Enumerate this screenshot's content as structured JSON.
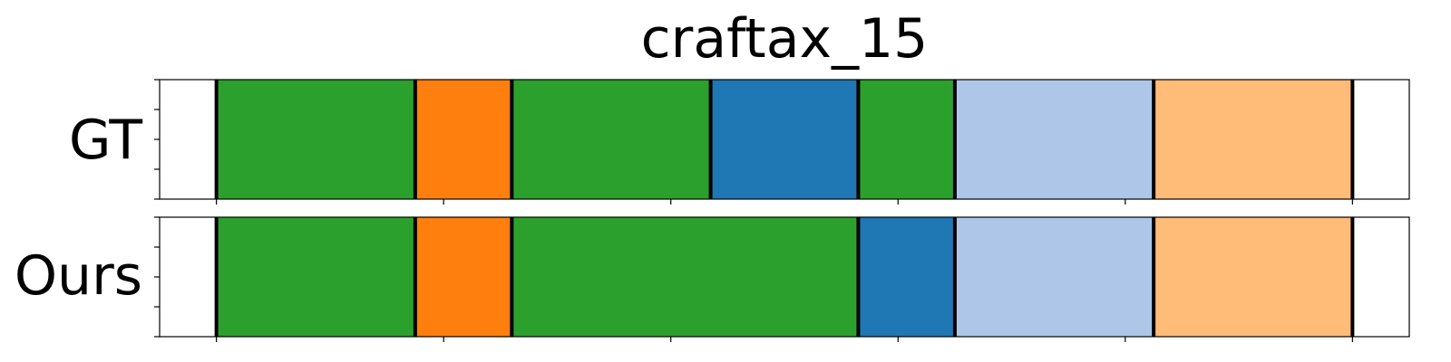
{
  "chart_data": {
    "type": "segmentation",
    "title": "craftax_15",
    "x_range": [
      -0.5,
      10.5
    ],
    "x_ticks": [
      0,
      2,
      4,
      6,
      8,
      10
    ],
    "grid": false,
    "legend": "none",
    "rows": [
      {
        "label": "GT",
        "segments": [
          {
            "start": 0.0,
            "end": 1.75,
            "color": "#2ca02c"
          },
          {
            "start": 1.75,
            "end": 2.6,
            "color": "#ff7f0e"
          },
          {
            "start": 2.6,
            "end": 4.35,
            "color": "#2ca02c"
          },
          {
            "start": 4.35,
            "end": 5.65,
            "color": "#1f77b4"
          },
          {
            "start": 5.65,
            "end": 6.5,
            "color": "#2ca02c"
          },
          {
            "start": 6.5,
            "end": 8.25,
            "color": "#aec7e8"
          },
          {
            "start": 8.25,
            "end": 10.0,
            "color": "#ffbb78"
          }
        ]
      },
      {
        "label": "Ours",
        "segments": [
          {
            "start": 0.0,
            "end": 1.75,
            "color": "#2ca02c"
          },
          {
            "start": 1.75,
            "end": 2.6,
            "color": "#ff7f0e"
          },
          {
            "start": 2.6,
            "end": 5.65,
            "color": "#2ca02c"
          },
          {
            "start": 5.65,
            "end": 6.5,
            "color": "#1f77b4"
          },
          {
            "start": 6.5,
            "end": 8.25,
            "color": "#aec7e8"
          },
          {
            "start": 8.25,
            "end": 10.0,
            "color": "#ffbb78"
          }
        ]
      }
    ]
  }
}
